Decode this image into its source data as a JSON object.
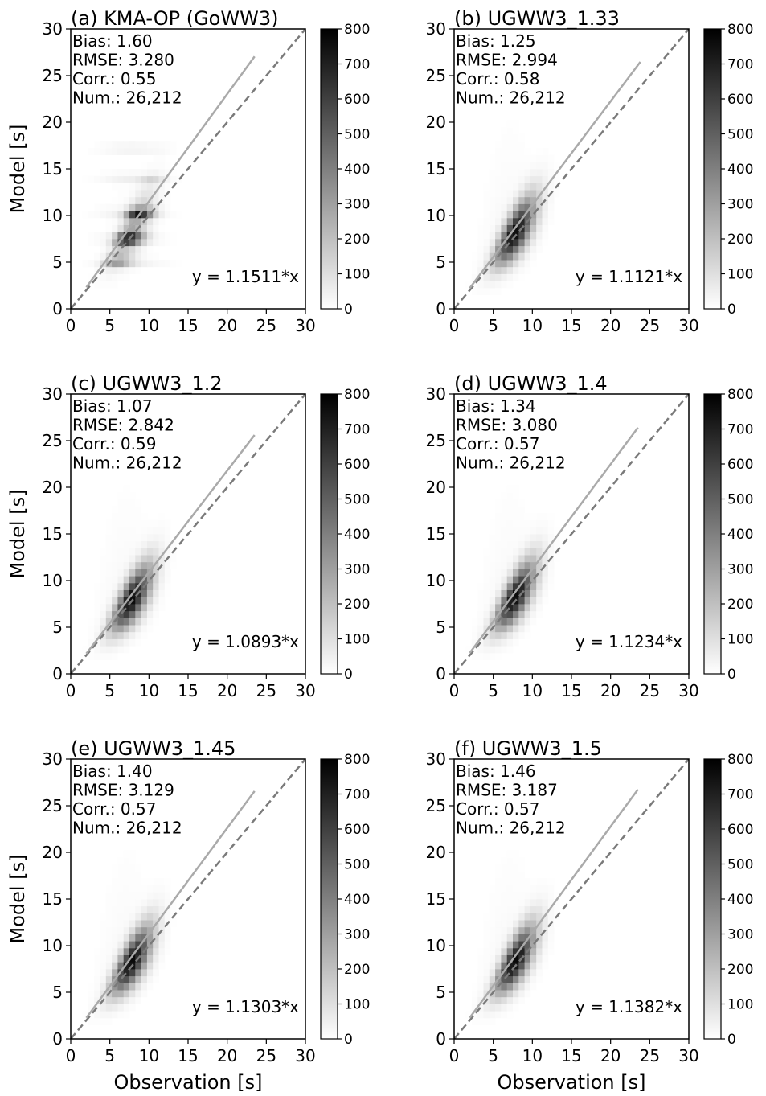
{
  "figure": {
    "xlabel": "Observation [s]",
    "ylabel": "Model [s]"
  },
  "chart_data": [
    {
      "type": "scatter-density",
      "title": "(a) KMA-OP (GoWW3)",
      "stats": {
        "bias": "Bias: 1.60",
        "rmse": "RMSE: 3.280",
        "corr": "Corr.: 0.55",
        "num": "Num.: 26,212"
      },
      "fit_label": "y = 1.1511*x",
      "slope": 1.1511,
      "fit_x_range": [
        2,
        23.5
      ],
      "xlim": [
        0,
        30
      ],
      "ylim": [
        0,
        30
      ],
      "xticks": [
        "0",
        "5",
        "10",
        "15",
        "20",
        "25",
        "30"
      ],
      "yticks": [
        "0",
        "5",
        "10",
        "15",
        "20",
        "25",
        "30"
      ],
      "colorbar": {
        "min": 0,
        "max": 800,
        "ticks": [
          "0",
          "100",
          "200",
          "300",
          "400",
          "500",
          "600",
          "700",
          "800"
        ]
      },
      "density_pattern": "banded"
    },
    {
      "type": "scatter-density",
      "title": "(b) UGWW3_1.33",
      "stats": {
        "bias": "Bias: 1.25",
        "rmse": "RMSE: 2.994",
        "corr": "Corr.: 0.58",
        "num": "Num.: 26,212"
      },
      "fit_label": "y = 1.1121*x",
      "slope": 1.1121,
      "fit_x_range": [
        2,
        23.8
      ],
      "xlim": [
        0,
        30
      ],
      "ylim": [
        0,
        30
      ],
      "xticks": [
        "0",
        "5",
        "10",
        "15",
        "20",
        "25",
        "30"
      ],
      "yticks": [
        "0",
        "5",
        "10",
        "15",
        "20",
        "25",
        "30"
      ],
      "colorbar": {
        "min": 0,
        "max": 800,
        "ticks": [
          "0",
          "100",
          "200",
          "300",
          "400",
          "500",
          "600",
          "700",
          "800"
        ]
      },
      "density_pattern": "smooth"
    },
    {
      "type": "scatter-density",
      "title": "(c) UGWW3_1.2",
      "stats": {
        "bias": "Bias: 1.07",
        "rmse": "RMSE: 2.842",
        "corr": "Corr.: 0.59",
        "num": "Num.: 26,212"
      },
      "fit_label": "y = 1.0893*x",
      "slope": 1.0893,
      "fit_x_range": [
        2,
        23.5
      ],
      "xlim": [
        0,
        30
      ],
      "ylim": [
        0,
        30
      ],
      "xticks": [
        "0",
        "5",
        "10",
        "15",
        "20",
        "25",
        "30"
      ],
      "yticks": [
        "0",
        "5",
        "10",
        "15",
        "20",
        "25",
        "30"
      ],
      "colorbar": {
        "min": 0,
        "max": 800,
        "ticks": [
          "0",
          "100",
          "200",
          "300",
          "400",
          "500",
          "600",
          "700",
          "800"
        ]
      },
      "density_pattern": "smooth"
    },
    {
      "type": "scatter-density",
      "title": "(d) UGWW3_1.4",
      "stats": {
        "bias": "Bias: 1.34",
        "rmse": "RMSE: 3.080",
        "corr": "Corr.: 0.57",
        "num": "Num.: 26,212"
      },
      "fit_label": "y = 1.1234*x",
      "slope": 1.1234,
      "fit_x_range": [
        2,
        23.5
      ],
      "xlim": [
        0,
        30
      ],
      "ylim": [
        0,
        30
      ],
      "xticks": [
        "0",
        "5",
        "10",
        "15",
        "20",
        "25",
        "30"
      ],
      "yticks": [
        "0",
        "5",
        "10",
        "15",
        "20",
        "25",
        "30"
      ],
      "colorbar": {
        "min": 0,
        "max": 800,
        "ticks": [
          "0",
          "100",
          "200",
          "300",
          "400",
          "500",
          "600",
          "700",
          "800"
        ]
      },
      "density_pattern": "smooth"
    },
    {
      "type": "scatter-density",
      "title": "(e) UGWW3_1.45",
      "stats": {
        "bias": "Bias: 1.40",
        "rmse": "RMSE: 3.129",
        "corr": "Corr.: 0.57",
        "num": "Num.: 26,212"
      },
      "fit_label": "y = 1.1303*x",
      "slope": 1.1303,
      "fit_x_range": [
        2,
        23.5
      ],
      "xlim": [
        0,
        30
      ],
      "ylim": [
        0,
        30
      ],
      "xticks": [
        "0",
        "5",
        "10",
        "15",
        "20",
        "25",
        "30"
      ],
      "yticks": [
        "0",
        "5",
        "10",
        "15",
        "20",
        "25",
        "30"
      ],
      "colorbar": {
        "min": 0,
        "max": 800,
        "ticks": [
          "0",
          "100",
          "200",
          "300",
          "400",
          "500",
          "600",
          "700",
          "800"
        ]
      },
      "density_pattern": "smooth"
    },
    {
      "type": "scatter-density",
      "title": "(f) UGWW3_1.5",
      "stats": {
        "bias": "Bias: 1.46",
        "rmse": "RMSE: 3.187",
        "corr": "Corr.: 0.57",
        "num": "Num.: 26,212"
      },
      "fit_label": "y = 1.1382*x",
      "slope": 1.1382,
      "fit_x_range": [
        2,
        23.5
      ],
      "xlim": [
        0,
        30
      ],
      "ylim": [
        0,
        30
      ],
      "xticks": [
        "0",
        "5",
        "10",
        "15",
        "20",
        "25",
        "30"
      ],
      "yticks": [
        "0",
        "5",
        "10",
        "15",
        "20",
        "25",
        "30"
      ],
      "colorbar": {
        "min": 0,
        "max": 800,
        "ticks": [
          "0",
          "100",
          "200",
          "300",
          "400",
          "500",
          "600",
          "700",
          "800"
        ]
      },
      "density_pattern": "smooth"
    }
  ]
}
